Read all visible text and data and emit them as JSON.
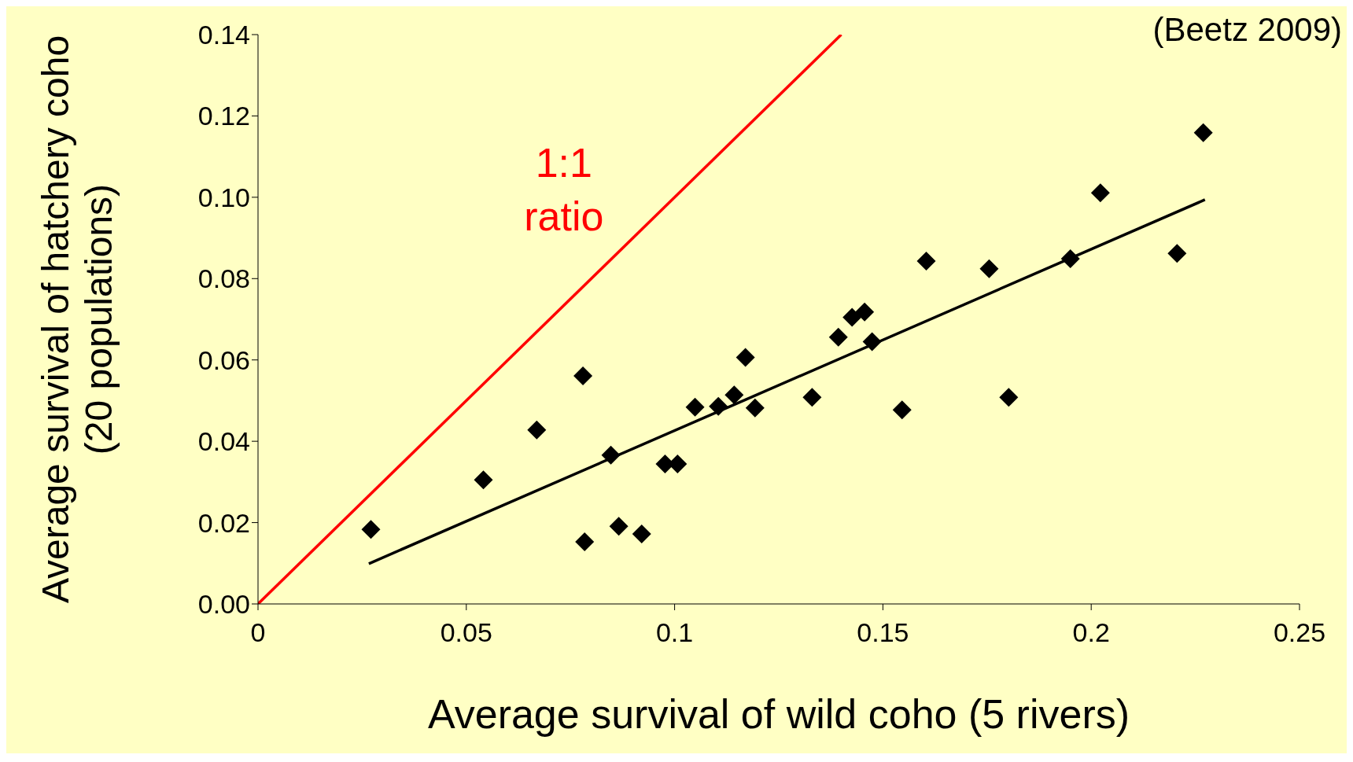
{
  "chart_data": {
    "type": "scatter",
    "xlabel": "Average survival of wild coho (5 rivers)",
    "ylabel": "Average survival of hatchery coho (20 populations)",
    "annotations": [
      "(Beetz 2009)"
    ],
    "xlim": [
      0,
      0.25
    ],
    "ylim": [
      0,
      0.14
    ],
    "xticks": [
      0,
      0.05,
      0.1,
      0.15,
      0.2,
      0.25
    ],
    "yticks": [
      {
        "value": 0,
        "label": "0.00"
      },
      0.02,
      0.04,
      0.06,
      0.08,
      {
        "value": 0.1,
        "label": "0.10"
      },
      0.12,
      0.14
    ],
    "series": [
      {
        "marker": "diamond",
        "color": "#000000",
        "x": [
          0.0271,
          0.0541,
          0.0669,
          0.078,
          0.0784,
          0.0847,
          0.0866,
          0.0921,
          0.0977,
          0.1007,
          0.1049,
          0.1105,
          0.1143,
          0.117,
          0.1193,
          0.133,
          0.1393,
          0.1426,
          0.1456,
          0.1474,
          0.1546,
          0.1604,
          0.1755,
          0.1802,
          0.195,
          0.2022,
          0.2206,
          0.2269
        ],
        "values": [
          0.0183,
          0.0305,
          0.0428,
          0.0561,
          0.0153,
          0.0366,
          0.0191,
          0.0172,
          0.0344,
          0.0344,
          0.0484,
          0.0486,
          0.0514,
          0.0606,
          0.0482,
          0.0508,
          0.0656,
          0.0705,
          0.0718,
          0.0645,
          0.0477,
          0.0843,
          0.0824,
          0.0508,
          0.0849,
          0.1011,
          0.0862,
          0.1159
        ]
      },
      {
        "type": "line",
        "color": "#000000",
        "x": [
          0.0266,
          0.2273
        ],
        "values": [
          0.0099,
          0.0994
        ]
      },
      {
        "type": "line",
        "name": "1:1 ratio",
        "color": "#ff0000",
        "x": [
          0,
          0.14
        ],
        "values": [
          0,
          0.14
        ]
      }
    ]
  }
}
